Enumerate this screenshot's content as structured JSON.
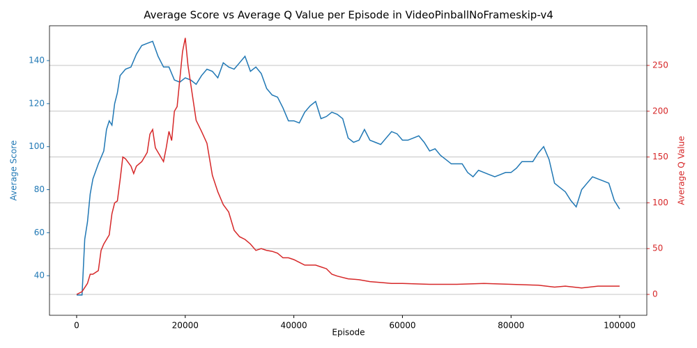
{
  "chart_data": {
    "type": "line",
    "title": "Average Score vs Average Q Value per Episode in VideoPinballNoFrameskip-v4",
    "xlabel": "Episode",
    "ylabel": "Average Score",
    "y2label": "Average Q Value",
    "xlim": [
      -5000,
      105000
    ],
    "xticks": [
      0,
      20000,
      40000,
      60000,
      80000,
      100000
    ],
    "ylim": [
      21.6,
      156.2
    ],
    "yticks": [
      40,
      60,
      80,
      100,
      120,
      140
    ],
    "y2lim": [
      -22.8,
      293.3
    ],
    "y2ticks": [
      0,
      50,
      100,
      150,
      200,
      250
    ],
    "grid": "y2",
    "series": [
      {
        "name": "Average Score",
        "color": "#1f77b4",
        "x": [
          0,
          1000,
          1500,
          2000,
          2500,
          3000,
          4000,
          5000,
          5500,
          6000,
          6500,
          7000,
          7500,
          8000,
          9000,
          10000,
          11000,
          12000,
          13000,
          14000,
          15000,
          16000,
          17000,
          18000,
          19000,
          20000,
          21000,
          22000,
          23000,
          24000,
          25000,
          26000,
          27000,
          28000,
          29000,
          30000,
          31000,
          32000,
          33000,
          34000,
          35000,
          36000,
          37000,
          38000,
          39000,
          40000,
          41000,
          42000,
          43000,
          44000,
          45000,
          46000,
          47000,
          48000,
          49000,
          50000,
          51000,
          52000,
          53000,
          54000,
          55000,
          56000,
          57000,
          58000,
          59000,
          60000,
          61000,
          62000,
          63000,
          64000,
          65000,
          66000,
          67000,
          68000,
          69000,
          70000,
          71000,
          72000,
          73000,
          74000,
          75000,
          76000,
          77000,
          78000,
          79000,
          80000,
          81000,
          82000,
          83000,
          84000,
          85000,
          86000,
          87000,
          88000,
          89000,
          90000,
          91000,
          92000,
          93000,
          94000,
          95000,
          96000,
          97000,
          98000,
          99000,
          100000
        ],
        "values": [
          31,
          31,
          57,
          65,
          78,
          85,
          92,
          98,
          108,
          112,
          110,
          120,
          125,
          133,
          136,
          137,
          143,
          147,
          148,
          149,
          142,
          137,
          137,
          131,
          130,
          132,
          131,
          129,
          133,
          136,
          135,
          132,
          139,
          137,
          136,
          139,
          142,
          135,
          137,
          134,
          127,
          124,
          123,
          118,
          112,
          112,
          111,
          116,
          119,
          121,
          113,
          114,
          116,
          115,
          113,
          104,
          102,
          103,
          108,
          103,
          102,
          101,
          104,
          107,
          106,
          103,
          103,
          104,
          105,
          102,
          98,
          99,
          96,
          94,
          92,
          92,
          92,
          88,
          86,
          89,
          88,
          87,
          86,
          87,
          88,
          88,
          90,
          93,
          93,
          93,
          97,
          100,
          94,
          83,
          81,
          79,
          75,
          72,
          80,
          83,
          86,
          85,
          84,
          83,
          75,
          71
        ]
      },
      {
        "name": "Average Q Value",
        "color": "#d62728",
        "axis": "y2",
        "x": [
          0,
          1000,
          2000,
          2500,
          3000,
          4000,
          4500,
          5000,
          6000,
          6500,
          7000,
          7500,
          8000,
          8500,
          9000,
          10000,
          10500,
          11000,
          12000,
          13000,
          13500,
          14000,
          14500,
          15000,
          16000,
          16500,
          17000,
          17500,
          18000,
          18500,
          19000,
          19500,
          20000,
          20500,
          21000,
          22000,
          23000,
          24000,
          25000,
          26000,
          27000,
          28000,
          29000,
          30000,
          31000,
          32000,
          33000,
          34000,
          35000,
          36000,
          37000,
          38000,
          39000,
          40000,
          41000,
          42000,
          44000,
          45000,
          46000,
          47000,
          48000,
          50000,
          52000,
          54000,
          56000,
          58000,
          60000,
          65000,
          70000,
          75000,
          80000,
          85000,
          88000,
          90000,
          93000,
          96000,
          100000
        ],
        "values": [
          0,
          3,
          12,
          22,
          22,
          26,
          48,
          55,
          65,
          88,
          100,
          102,
          125,
          150,
          148,
          140,
          132,
          140,
          145,
          155,
          175,
          180,
          160,
          155,
          145,
          160,
          178,
          168,
          200,
          205,
          235,
          265,
          280,
          250,
          230,
          190,
          178,
          165,
          130,
          112,
          98,
          90,
          70,
          63,
          60,
          55,
          48,
          50,
          48,
          47,
          45,
          40,
          40,
          38,
          35,
          32,
          32,
          30,
          28,
          22,
          20,
          17,
          16,
          14,
          13,
          12,
          12,
          11,
          11,
          12,
          11,
          10,
          8,
          9,
          7,
          9,
          9
        ]
      }
    ]
  }
}
